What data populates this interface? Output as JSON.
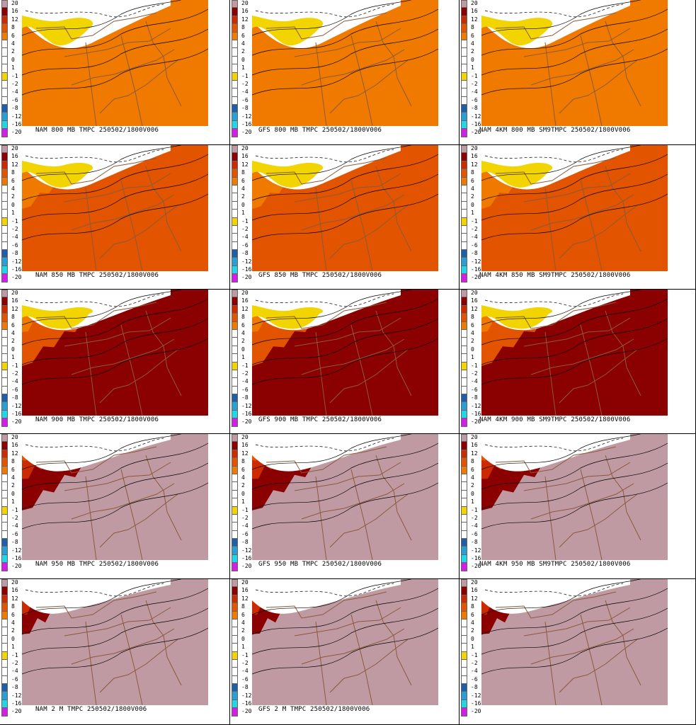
{
  "legend": {
    "labels": [
      "20",
      "16",
      "12",
      "8",
      "6",
      "4",
      "2",
      "0",
      "1",
      "-1",
      "-2",
      "-4",
      "-6",
      "-8",
      "-12",
      "-16",
      "-20"
    ],
    "colors": [
      "#c09aa3",
      "#8b0000",
      "#cc2a00",
      "#e25400",
      "#f07a00",
      "#ffffff",
      "#ffffff",
      "#ffffff",
      "#ffffff",
      "#f2d400",
      "#ffffff",
      "#ffffff",
      "#ffffff",
      "#1f5fa8",
      "#2a9fd4",
      "#21d6e6",
      "#d21ee6"
    ]
  },
  "colors": {
    "warm_pink": "#c09aa3",
    "dark_red": "#8b0000",
    "red_orange": "#d33a00",
    "orange": "#f07a00",
    "yellow": "#f2d400",
    "border_brown": "#8b5a3c"
  },
  "rows": [
    [
      {
        "caption": "NAM 800  MB TMPC 250502/1800V006",
        "warmth": 0
      },
      {
        "caption": "GFS 800  MB TMPC 250502/1800V006",
        "warmth": 0
      },
      {
        "caption": "NAM 4KM 800  MB SM9TMPC 250502/1800V006",
        "warmth": 0
      }
    ],
    [
      {
        "caption": "NAM 850  MB TMPC 250502/1800V006",
        "warmth": 1
      },
      {
        "caption": "GFS 850  MB TMPC 250502/1800V006",
        "warmth": 1
      },
      {
        "caption": "NAM 4KM 850  MB SM9TMPC 250502/1800V006",
        "warmth": 1
      }
    ],
    [
      {
        "caption": "NAM 900  MB TMPC 250502/1800V006",
        "warmth": 2
      },
      {
        "caption": "GFS 900  MB TMPC 250502/1800V006",
        "warmth": 2
      },
      {
        "caption": "NAM 4KM 900  MB SM9TMPC 250502/1800V006",
        "warmth": 2
      }
    ],
    [
      {
        "caption": "NAM 950  MB TMPC 250502/1800V006",
        "warmth": 3
      },
      {
        "caption": "GFS 950  MB TMPC 250502/1800V006",
        "warmth": 3
      },
      {
        "caption": "NAM 4KM 950  MB SM9TMPC 250502/1800V006",
        "warmth": 3
      }
    ],
    [
      {
        "caption": "NAM 2 M TMPC 250502/1800V006",
        "warmth": 4
      },
      {
        "caption": "GFS 2 M TMPC 250502/1800V006",
        "warmth": 4
      },
      {
        "caption": "",
        "warmth": 4
      }
    ]
  ]
}
